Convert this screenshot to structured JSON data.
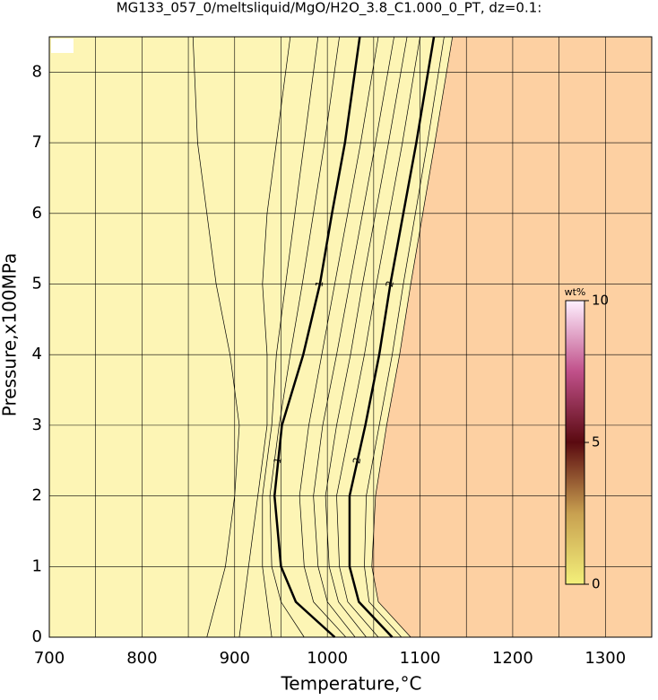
{
  "chart_data": {
    "type": "contour",
    "title": "MG133_057_0/meltsliquid/MgO/H2O_3.8_C1.000_0_PT, dz=0.1:",
    "x_label": "Temperature,°C",
    "y_label": "Pressure,x100MPa",
    "xlim": [
      700,
      1350
    ],
    "ylim": [
      0,
      8.5
    ],
    "xticks": [
      700,
      800,
      900,
      1000,
      1100,
      1200,
      1300
    ],
    "xgrid_minor": [
      750,
      850,
      950,
      1050,
      1150,
      1250
    ],
    "yticks": [
      0,
      1,
      2,
      3,
      4,
      5,
      6,
      7,
      8
    ],
    "grid": true,
    "low_color": "#fdf5b5",
    "high_color": "#fdd0a2",
    "line_color": "#000000",
    "pressures": [
      0,
      0.5,
      1,
      2,
      3,
      4,
      5,
      6,
      7,
      8.5
    ],
    "series": [
      {
        "level": 0.2,
        "values": [
          870,
          880,
          890,
          900,
          905,
          895,
          880,
          870,
          860,
          855
        ]
      },
      {
        "level": 0.4,
        "values": [
          905,
          910,
          915,
          925,
          935,
          935,
          930,
          935,
          945,
          960
        ]
      },
      {
        "level": 0.6,
        "values": [
          940,
          935,
          930,
          930,
          940,
          945,
          955,
          965,
          975,
          990
        ]
      },
      {
        "level": 0.8,
        "values": [
          975,
          950,
          940,
          938,
          948,
          960,
          973,
          985,
          997,
          1013
        ]
      },
      {
        "level": 1,
        "bold": true,
        "values": [
          1008,
          966,
          950,
          943,
          951,
          974,
          992,
          1005,
          1019,
          1035
        ]
      },
      {
        "level": 1.2,
        "values": [
          1020,
          985,
          975,
          970,
          980,
          994,
          1008,
          1022,
          1036,
          1055
        ]
      },
      {
        "level": 1.4,
        "values": [
          1030,
          1000,
          990,
          985,
          995,
          1010,
          1024,
          1038,
          1052,
          1072
        ]
      },
      {
        "level": 1.6,
        "values": [
          1042,
          1012,
          1002,
          998,
          1010,
          1025,
          1038,
          1052,
          1066,
          1086
        ]
      },
      {
        "level": 1.8,
        "values": [
          1055,
          1022,
          1013,
          1010,
          1025,
          1040,
          1053,
          1067,
          1081,
          1100
        ]
      },
      {
        "level": 2,
        "bold": true,
        "values": [
          1070,
          1034,
          1024,
          1024,
          1041,
          1056,
          1068,
          1082,
          1096,
          1115
        ]
      },
      {
        "level": 2.2,
        "values": [
          1080,
          1045,
          1040,
          1042,
          1056,
          1070,
          1082,
          1095,
          1108,
          1126
        ]
      },
      {
        "level": 2.4,
        "values": [
          1090,
          1055,
          1048,
          1052,
          1064,
          1078,
          1090,
          1103,
          1116,
          1135
        ]
      }
    ],
    "colorbar": {
      "label": "wt%",
      "lim": [
        0,
        10
      ],
      "ticks": [
        0,
        5,
        10
      ]
    }
  }
}
